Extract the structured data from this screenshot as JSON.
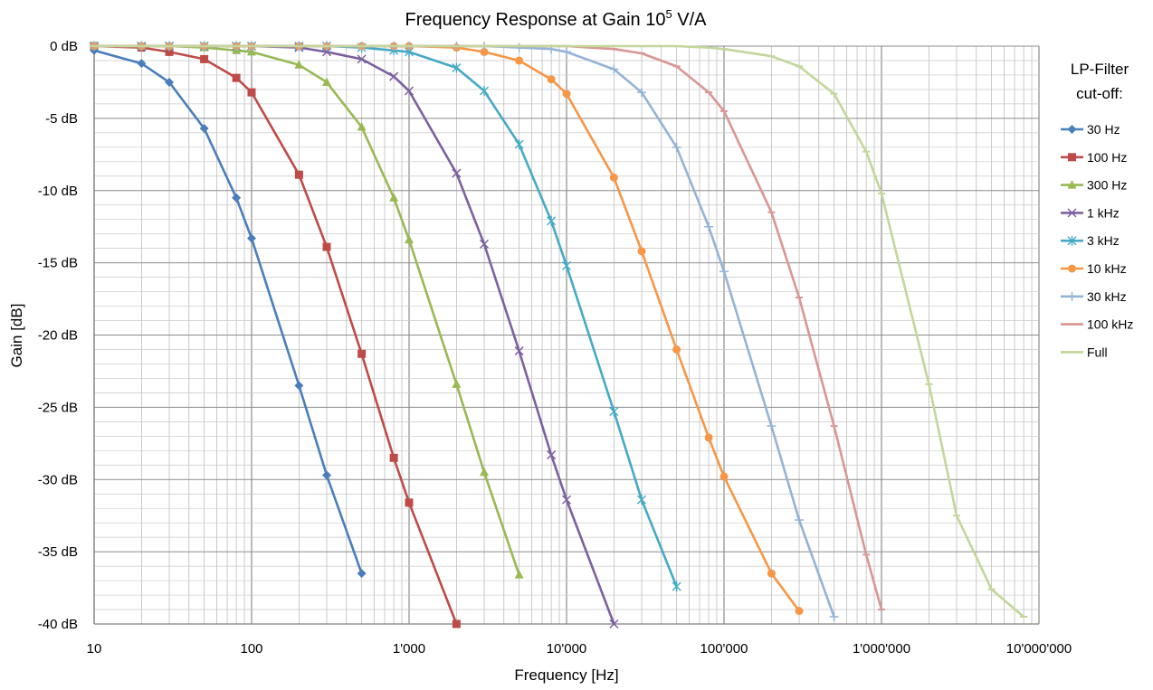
{
  "chart_data": {
    "type": "line",
    "title_main": "Frequency Response at Gain 10",
    "title_sup": "5",
    "title_tail": " V/A",
    "xlabel": "Frequency [Hz]",
    "ylabel": "Gain [dB]",
    "x_scale": "log",
    "xlim": [
      10,
      10000000
    ],
    "ylim": [
      -40,
      0
    ],
    "grid": true,
    "legend_position": "right",
    "legend_title_1": "LP-Filter",
    "legend_title_2": "cut-off:",
    "x_ticks": [
      {
        "value": 10,
        "label": "10"
      },
      {
        "value": 100,
        "label": "100"
      },
      {
        "value": 1000,
        "label": "1'000"
      },
      {
        "value": 10000,
        "label": "10'000"
      },
      {
        "value": 100000,
        "label": "100'000"
      },
      {
        "value": 1000000,
        "label": "1'000'000"
      },
      {
        "value": 10000000,
        "label": "10'000'000"
      }
    ],
    "y_ticks": [
      {
        "value": 0,
        "label": "0 dB"
      },
      {
        "value": -5,
        "label": "-5 dB"
      },
      {
        "value": -10,
        "label": "-10 dB"
      },
      {
        "value": -15,
        "label": "-15 dB"
      },
      {
        "value": -20,
        "label": "-20 dB"
      },
      {
        "value": -25,
        "label": "-25 dB"
      },
      {
        "value": -30,
        "label": "-30 dB"
      },
      {
        "value": -35,
        "label": "-35 dB"
      },
      {
        "value": -40,
        "label": "-40 dB"
      }
    ],
    "series": [
      {
        "name": "30 Hz",
        "color": "#4a7ebb",
        "marker": "diamond",
        "x": [
          10,
          20,
          30,
          50,
          80,
          100,
          200,
          300,
          500
        ],
        "y": [
          -0.3,
          -1.2,
          -2.5,
          -5.7,
          -10.5,
          -13.3,
          -23.5,
          -29.7,
          -36.5
        ]
      },
      {
        "name": "100 Hz",
        "color": "#be4b48",
        "marker": "square",
        "x": [
          10,
          20,
          30,
          50,
          80,
          100,
          200,
          300,
          500,
          800,
          1000,
          2000
        ],
        "y": [
          0,
          -0.1,
          -0.4,
          -0.9,
          -2.2,
          -3.2,
          -8.9,
          -13.9,
          -21.3,
          -28.5,
          -31.6,
          -40
        ]
      },
      {
        "name": "300 Hz",
        "color": "#98b954",
        "marker": "triangle",
        "x": [
          10,
          20,
          30,
          50,
          80,
          100,
          200,
          300,
          500,
          800,
          1000,
          2000,
          3000,
          5000
        ],
        "y": [
          0,
          0,
          0,
          -0.1,
          -0.3,
          -0.4,
          -1.3,
          -2.5,
          -5.6,
          -10.5,
          -13.4,
          -23.4,
          -29.5,
          -36.6
        ]
      },
      {
        "name": "1 kHz",
        "color": "#7d60a0",
        "marker": "x",
        "x": [
          10,
          20,
          30,
          50,
          80,
          100,
          200,
          300,
          500,
          800,
          1000,
          2000,
          3000,
          5000,
          8000,
          10000,
          20000
        ],
        "y": [
          0,
          0,
          0,
          0,
          0,
          0,
          -0.1,
          -0.4,
          -0.9,
          -2.1,
          -3.1,
          -8.8,
          -13.7,
          -21.1,
          -28.3,
          -31.4,
          -40
        ]
      },
      {
        "name": "3 kHz",
        "color": "#46aac5",
        "marker": "asterisk",
        "x": [
          10,
          20,
          30,
          50,
          80,
          100,
          200,
          300,
          500,
          800,
          1000,
          2000,
          3000,
          5000,
          8000,
          10000,
          20000,
          30000,
          50000
        ],
        "y": [
          0,
          0,
          0,
          0,
          0,
          0,
          0,
          0,
          -0.1,
          -0.3,
          -0.4,
          -1.5,
          -3.1,
          -6.8,
          -12.1,
          -15.2,
          -25.3,
          -31.4,
          -37.4
        ]
      },
      {
        "name": "10 kHz",
        "color": "#f79646",
        "marker": "circle",
        "x": [
          10,
          20,
          30,
          50,
          80,
          100,
          200,
          300,
          500,
          800,
          1000,
          2000,
          3000,
          5000,
          8000,
          10000,
          20000,
          30000,
          50000,
          80000,
          100000,
          200000,
          300000
        ],
        "y": [
          0,
          0,
          0,
          0,
          0,
          0,
          0,
          0,
          0,
          0,
          0,
          -0.1,
          -0.4,
          -1,
          -2.3,
          -3.3,
          -9.1,
          -14.2,
          -21,
          -27.1,
          -29.8,
          -36.5,
          -39.1
        ]
      },
      {
        "name": "30 kHz",
        "color": "#95b3d7",
        "marker": "plus",
        "x": [
          10,
          20,
          30,
          50,
          80,
          100,
          200,
          300,
          500,
          800,
          1000,
          2000,
          3000,
          5000,
          8000,
          10000,
          20000,
          30000,
          50000,
          80000,
          100000,
          200000,
          300000,
          500000
        ],
        "y": [
          0,
          0,
          0,
          0,
          0,
          0,
          0,
          0,
          0,
          0,
          0,
          0,
          0,
          -0.1,
          -0.2,
          -0.4,
          -1.6,
          -3.2,
          -7,
          -12.5,
          -15.6,
          -26.3,
          -32.8,
          -39.5
        ]
      },
      {
        "name": "100 kHz",
        "color": "#d99694",
        "marker": "dash",
        "x": [
          10,
          20,
          30,
          50,
          80,
          100,
          200,
          300,
          500,
          800,
          1000,
          2000,
          3000,
          5000,
          8000,
          10000,
          20000,
          30000,
          50000,
          80000,
          100000,
          200000,
          300000,
          500000,
          800000,
          1000000
        ],
        "y": [
          0,
          0,
          0,
          0,
          0,
          0,
          0,
          0,
          0,
          0,
          0,
          0,
          0,
          0,
          0,
          0,
          -0.2,
          -0.5,
          -1.4,
          -3.2,
          -4.5,
          -11.5,
          -17.4,
          -26.3,
          -35.2,
          -39
        ]
      },
      {
        "name": "Full",
        "color": "#c3d69b",
        "marker": "dash",
        "x": [
          10,
          20,
          30,
          50,
          80,
          100,
          200,
          300,
          500,
          800,
          1000,
          2000,
          3000,
          5000,
          8000,
          10000,
          20000,
          30000,
          50000,
          80000,
          100000,
          200000,
          300000,
          500000,
          800000,
          1000000,
          2000000,
          3000000,
          5000000,
          8000000
        ],
        "y": [
          0,
          0,
          0,
          0,
          0,
          0,
          0,
          0,
          0,
          0,
          0,
          0,
          0,
          0,
          0,
          0,
          0,
          0,
          0,
          -0.1,
          -0.2,
          -0.7,
          -1.4,
          -3.3,
          -7.3,
          -10.2,
          -23.4,
          -32.5,
          -37.6,
          -39.5
        ]
      }
    ]
  }
}
